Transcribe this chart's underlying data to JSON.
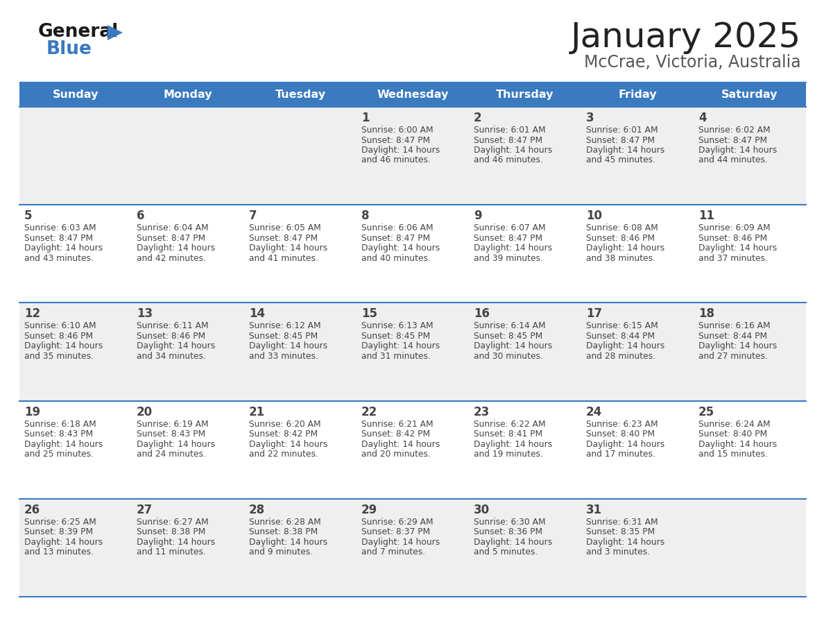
{
  "title": "January 2025",
  "subtitle": "McCrae, Victoria, Australia",
  "header_color": "#3a7abf",
  "header_text_color": "#ffffff",
  "day_names": [
    "Sunday",
    "Monday",
    "Tuesday",
    "Wednesday",
    "Thursday",
    "Friday",
    "Saturday"
  ],
  "bg_color_even": "#efefef",
  "bg_color_odd": "#ffffff",
  "cell_text_color": "#444444",
  "grid_line_color": "#3a7abf",
  "title_color": "#222222",
  "subtitle_color": "#555555",
  "logo_general_color": "#1a1a1a",
  "logo_blue_color": "#3a7abf",
  "logo_triangle_color": "#3a7abf",
  "calendar": [
    [
      null,
      null,
      null,
      {
        "day": 1,
        "sunrise": "6:00 AM",
        "sunset": "8:47 PM",
        "daylight": "14 hours and 46 minutes."
      },
      {
        "day": 2,
        "sunrise": "6:01 AM",
        "sunset": "8:47 PM",
        "daylight": "14 hours and 46 minutes."
      },
      {
        "day": 3,
        "sunrise": "6:01 AM",
        "sunset": "8:47 PM",
        "daylight": "14 hours and 45 minutes."
      },
      {
        "day": 4,
        "sunrise": "6:02 AM",
        "sunset": "8:47 PM",
        "daylight": "14 hours and 44 minutes."
      }
    ],
    [
      {
        "day": 5,
        "sunrise": "6:03 AM",
        "sunset": "8:47 PM",
        "daylight": "14 hours and 43 minutes."
      },
      {
        "day": 6,
        "sunrise": "6:04 AM",
        "sunset": "8:47 PM",
        "daylight": "14 hours and 42 minutes."
      },
      {
        "day": 7,
        "sunrise": "6:05 AM",
        "sunset": "8:47 PM",
        "daylight": "14 hours and 41 minutes."
      },
      {
        "day": 8,
        "sunrise": "6:06 AM",
        "sunset": "8:47 PM",
        "daylight": "14 hours and 40 minutes."
      },
      {
        "day": 9,
        "sunrise": "6:07 AM",
        "sunset": "8:47 PM",
        "daylight": "14 hours and 39 minutes."
      },
      {
        "day": 10,
        "sunrise": "6:08 AM",
        "sunset": "8:46 PM",
        "daylight": "14 hours and 38 minutes."
      },
      {
        "day": 11,
        "sunrise": "6:09 AM",
        "sunset": "8:46 PM",
        "daylight": "14 hours and 37 minutes."
      }
    ],
    [
      {
        "day": 12,
        "sunrise": "6:10 AM",
        "sunset": "8:46 PM",
        "daylight": "14 hours and 35 minutes."
      },
      {
        "day": 13,
        "sunrise": "6:11 AM",
        "sunset": "8:46 PM",
        "daylight": "14 hours and 34 minutes."
      },
      {
        "day": 14,
        "sunrise": "6:12 AM",
        "sunset": "8:45 PM",
        "daylight": "14 hours and 33 minutes."
      },
      {
        "day": 15,
        "sunrise": "6:13 AM",
        "sunset": "8:45 PM",
        "daylight": "14 hours and 31 minutes."
      },
      {
        "day": 16,
        "sunrise": "6:14 AM",
        "sunset": "8:45 PM",
        "daylight": "14 hours and 30 minutes."
      },
      {
        "day": 17,
        "sunrise": "6:15 AM",
        "sunset": "8:44 PM",
        "daylight": "14 hours and 28 minutes."
      },
      {
        "day": 18,
        "sunrise": "6:16 AM",
        "sunset": "8:44 PM",
        "daylight": "14 hours and 27 minutes."
      }
    ],
    [
      {
        "day": 19,
        "sunrise": "6:18 AM",
        "sunset": "8:43 PM",
        "daylight": "14 hours and 25 minutes."
      },
      {
        "day": 20,
        "sunrise": "6:19 AM",
        "sunset": "8:43 PM",
        "daylight": "14 hours and 24 minutes."
      },
      {
        "day": 21,
        "sunrise": "6:20 AM",
        "sunset": "8:42 PM",
        "daylight": "14 hours and 22 minutes."
      },
      {
        "day": 22,
        "sunrise": "6:21 AM",
        "sunset": "8:42 PM",
        "daylight": "14 hours and 20 minutes."
      },
      {
        "day": 23,
        "sunrise": "6:22 AM",
        "sunset": "8:41 PM",
        "daylight": "14 hours and 19 minutes."
      },
      {
        "day": 24,
        "sunrise": "6:23 AM",
        "sunset": "8:40 PM",
        "daylight": "14 hours and 17 minutes."
      },
      {
        "day": 25,
        "sunrise": "6:24 AM",
        "sunset": "8:40 PM",
        "daylight": "14 hours and 15 minutes."
      }
    ],
    [
      {
        "day": 26,
        "sunrise": "6:25 AM",
        "sunset": "8:39 PM",
        "daylight": "14 hours and 13 minutes."
      },
      {
        "day": 27,
        "sunrise": "6:27 AM",
        "sunset": "8:38 PM",
        "daylight": "14 hours and 11 minutes."
      },
      {
        "day": 28,
        "sunrise": "6:28 AM",
        "sunset": "8:38 PM",
        "daylight": "14 hours and 9 minutes."
      },
      {
        "day": 29,
        "sunrise": "6:29 AM",
        "sunset": "8:37 PM",
        "daylight": "14 hours and 7 minutes."
      },
      {
        "day": 30,
        "sunrise": "6:30 AM",
        "sunset": "8:36 PM",
        "daylight": "14 hours and 5 minutes."
      },
      {
        "day": 31,
        "sunrise": "6:31 AM",
        "sunset": "8:35 PM",
        "daylight": "14 hours and 3 minutes."
      },
      null
    ]
  ]
}
